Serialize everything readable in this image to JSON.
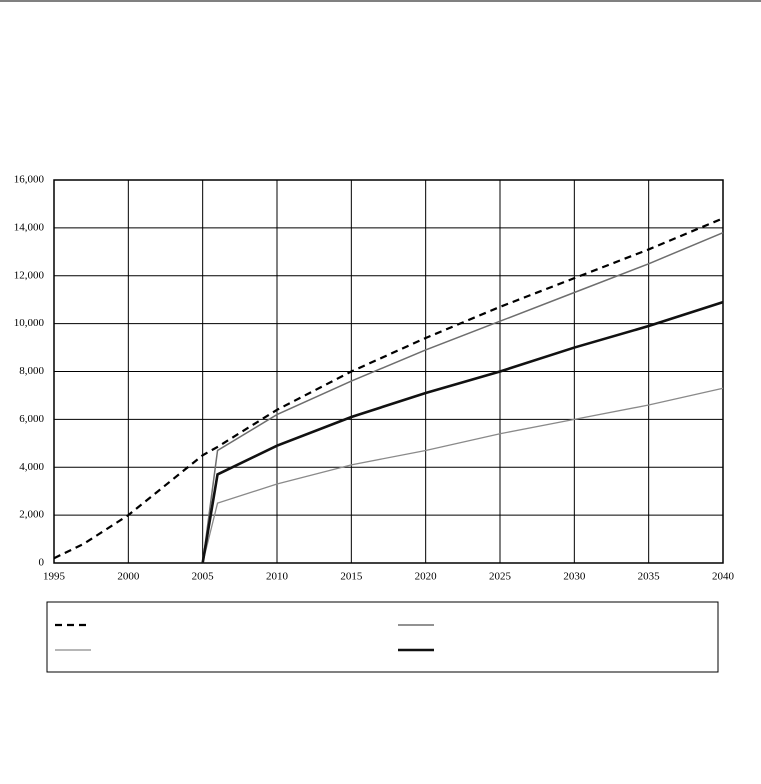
{
  "chart_data": {
    "type": "line",
    "x": [
      1995,
      1997,
      2000,
      2003,
      2005,
      2006,
      2010,
      2015,
      2020,
      2025,
      2030,
      2035,
      2040
    ],
    "series": [
      {
        "color": "#000000",
        "dash": true,
        "width": 2.2,
        "values": [
          200,
          800,
          2000,
          3500,
          4500,
          4850,
          6400,
          8000,
          9400,
          10700,
          11900,
          13100,
          14400
        ]
      },
      {
        "color": "#8a8a8a",
        "dash": false,
        "width": 1.3,
        "values": [
          null,
          null,
          null,
          null,
          0,
          2500,
          3300,
          4100,
          4700,
          5400,
          6000,
          6600,
          7300
        ]
      },
      {
        "color": "#6e6e6e",
        "dash": false,
        "width": 1.5,
        "values": [
          null,
          null,
          null,
          null,
          0,
          4700,
          6200,
          7600,
          8900,
          10100,
          11300,
          12500,
          13800
        ]
      },
      {
        "color": "#111111",
        "dash": false,
        "width": 2.6,
        "values": [
          null,
          null,
          null,
          null,
          0,
          3700,
          4900,
          6100,
          7100,
          8000,
          9000,
          9900,
          10900
        ]
      }
    ],
    "xlim": [
      1995,
      2040
    ],
    "xticks": [
      1995,
      2000,
      2005,
      2010,
      2015,
      2020,
      2025,
      2030,
      2035,
      2040
    ],
    "ylim": [
      0,
      16000
    ],
    "yticks": [
      0,
      {
        "value": 2000,
        "label": "2,000"
      },
      {
        "value": 4000,
        "label": "4,000"
      },
      {
        "value": 6000,
        "label": "6,000"
      },
      {
        "value": 8000,
        "label": "8,000"
      },
      {
        "value": 10000,
        "label": "10,000"
      },
      {
        "value": 12000,
        "label": "12,000"
      },
      {
        "value": 14000,
        "label": "14,000"
      },
      {
        "value": 16000,
        "label": "16,000"
      }
    ],
    "grid": true
  }
}
